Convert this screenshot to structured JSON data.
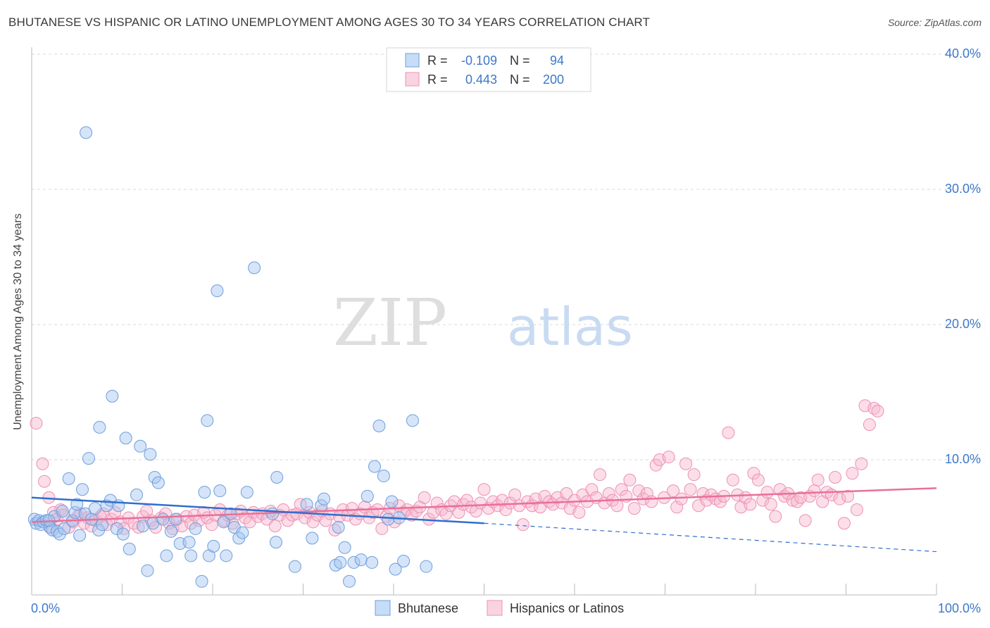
{
  "header": {
    "title": "BHUTANESE VS HISPANIC OR LATINO UNEMPLOYMENT AMONG AGES 30 TO 34 YEARS CORRELATION CHART",
    "source": "Source: ZipAtlas.com"
  },
  "watermark": {
    "zip": "ZIP",
    "atlas": "atlas"
  },
  "colors": {
    "blue": "#6f9fdb",
    "blue_fill": "rgba(162,196,240,0.45)",
    "blue_line": "#2f6fcf",
    "pink": "#ee91b0",
    "pink_fill": "rgba(247,182,206,0.45)",
    "pink_line": "#e8709a",
    "tick_label": "#3d78c9",
    "grid": "#d9d9d9"
  },
  "chart_data": {
    "type": "scatter",
    "xlabel": "",
    "ylabel": "Unemployment Among Ages 30 to 34 years",
    "xlim": [
      0,
      100
    ],
    "ylim": [
      0,
      40
    ],
    "x_tick_labels": [
      "0.0%",
      "100.0%"
    ],
    "y_ticks": [
      10,
      20,
      30,
      40
    ],
    "y_tick_labels": [
      "10.0%",
      "20.0%",
      "30.0%",
      "40.0%"
    ],
    "grid": true,
    "legend_position": "top-center",
    "stats": [
      {
        "r_label": "R =",
        "r_value": "-0.109",
        "n_label": "N =",
        "n_value": "94"
      },
      {
        "r_label": "R =",
        "r_value": "0.443",
        "n_label": "N =",
        "n_value": "200"
      }
    ],
    "series": [
      {
        "name": "Bhutanese",
        "trend": {
          "solid": [
            [
              0,
              7.2
            ],
            [
              50,
              5.3
            ]
          ],
          "dashed": [
            [
              50,
              5.3
            ],
            [
              100,
              3.2
            ]
          ]
        },
        "points": [
          [
            0.3,
            5.6
          ],
          [
            0.5,
            5.3
          ],
          [
            0.8,
            5.5
          ],
          [
            1.0,
            5.2
          ],
          [
            1.3,
            5.4
          ],
          [
            1.6,
            5.5
          ],
          [
            2.0,
            5.0
          ],
          [
            2.3,
            4.8
          ],
          [
            2.5,
            5.8
          ],
          [
            2.8,
            4.7
          ],
          [
            3.1,
            4.5
          ],
          [
            3.4,
            6.2
          ],
          [
            3.6,
            4.9
          ],
          [
            4.1,
            8.6
          ],
          [
            4.5,
            5.5
          ],
          [
            4.8,
            6.1
          ],
          [
            5.3,
            4.4
          ],
          [
            5.6,
            7.8
          ],
          [
            5.9,
            6.0
          ],
          [
            6.3,
            10.1
          ],
          [
            6.6,
            5.6
          ],
          [
            7.0,
            6.4
          ],
          [
            7.4,
            4.8
          ],
          [
            7.5,
            12.4
          ],
          [
            7.8,
            5.2
          ],
          [
            8.3,
            6.6
          ],
          [
            8.7,
            7.0
          ],
          [
            8.9,
            14.7
          ],
          [
            9.4,
            4.9
          ],
          [
            9.6,
            6.6
          ],
          [
            10.1,
            4.5
          ],
          [
            10.4,
            11.6
          ],
          [
            10.8,
            3.4
          ],
          [
            11.6,
            7.4
          ],
          [
            12.0,
            11.0
          ],
          [
            12.3,
            5.1
          ],
          [
            12.8,
            1.8
          ],
          [
            13.1,
            10.4
          ],
          [
            13.4,
            5.3
          ],
          [
            13.6,
            8.7
          ],
          [
            14.0,
            8.3
          ],
          [
            14.5,
            5.6
          ],
          [
            14.9,
            2.9
          ],
          [
            15.4,
            4.7
          ],
          [
            15.9,
            5.6
          ],
          [
            16.4,
            3.8
          ],
          [
            17.4,
            3.9
          ],
          [
            17.6,
            2.9
          ],
          [
            18.1,
            4.9
          ],
          [
            18.8,
            1.0
          ],
          [
            19.1,
            7.6
          ],
          [
            19.4,
            12.9
          ],
          [
            19.6,
            2.9
          ],
          [
            20.1,
            3.6
          ],
          [
            20.5,
            22.5
          ],
          [
            20.8,
            7.7
          ],
          [
            21.2,
            5.4
          ],
          [
            21.5,
            2.9
          ],
          [
            22.0,
            6.0
          ],
          [
            22.4,
            5.0
          ],
          [
            22.9,
            4.2
          ],
          [
            23.3,
            4.6
          ],
          [
            23.8,
            7.6
          ],
          [
            24.6,
            24.2
          ],
          [
            26.6,
            6.0
          ],
          [
            27.1,
            8.7
          ],
          [
            27.0,
            3.9
          ],
          [
            29.1,
            2.1
          ],
          [
            30.4,
            6.7
          ],
          [
            31.0,
            4.2
          ],
          [
            32.0,
            6.6
          ],
          [
            32.3,
            7.1
          ],
          [
            33.6,
            2.2
          ],
          [
            33.9,
            5.0
          ],
          [
            34.1,
            2.4
          ],
          [
            34.6,
            3.5
          ],
          [
            35.1,
            1.0
          ],
          [
            35.6,
            2.4
          ],
          [
            36.4,
            2.6
          ],
          [
            37.1,
            7.3
          ],
          [
            37.6,
            2.4
          ],
          [
            37.9,
            9.5
          ],
          [
            38.4,
            12.5
          ],
          [
            38.9,
            8.8
          ],
          [
            39.4,
            5.6
          ],
          [
            39.8,
            6.9
          ],
          [
            40.2,
            1.9
          ],
          [
            40.6,
            5.7
          ],
          [
            41.1,
            2.5
          ],
          [
            42.1,
            12.9
          ],
          [
            43.6,
            2.1
          ],
          [
            5.0,
            6.7
          ],
          [
            6.0,
            34.2
          ],
          [
            1.9,
            5.5
          ]
        ]
      },
      {
        "name": "Hispanics or Latinos",
        "trend": {
          "solid": [
            [
              0,
              5.4
            ],
            [
              100,
              7.9
            ]
          ]
        },
        "points": [
          [
            0.5,
            12.7
          ],
          [
            1.2,
            9.7
          ],
          [
            1.4,
            8.4
          ],
          [
            1.9,
            7.2
          ],
          [
            2.1,
            5.0
          ],
          [
            2.4,
            6.1
          ],
          [
            2.8,
            5.6
          ],
          [
            3.2,
            6.3
          ],
          [
            3.5,
            5.9
          ],
          [
            4.1,
            5.0
          ],
          [
            4.6,
            5.4
          ],
          [
            5.1,
            5.8
          ],
          [
            5.4,
            6.0
          ],
          [
            5.8,
            5.3
          ],
          [
            6.2,
            5.7
          ],
          [
            6.6,
            5.1
          ],
          [
            7.1,
            5.5
          ],
          [
            7.6,
            5.8
          ],
          [
            7.9,
            6.0
          ],
          [
            8.3,
            5.2
          ],
          [
            8.8,
            5.6
          ],
          [
            9.2,
            6.1
          ],
          [
            9.8,
            5.4
          ],
          [
            10.2,
            4.9
          ],
          [
            10.7,
            5.7
          ],
          [
            11.3,
            5.3
          ],
          [
            11.8,
            5.0
          ],
          [
            12.3,
            5.8
          ],
          [
            12.7,
            6.2
          ],
          [
            13.2,
            5.5
          ],
          [
            13.7,
            5.0
          ],
          [
            14.3,
            5.7
          ],
          [
            14.8,
            6.0
          ],
          [
            15.2,
            5.3
          ],
          [
            15.6,
            4.9
          ],
          [
            16.1,
            5.6
          ],
          [
            16.6,
            5.1
          ],
          [
            17.1,
            5.8
          ],
          [
            17.6,
            5.3
          ],
          [
            18.0,
            5.9
          ],
          [
            18.5,
            5.5
          ],
          [
            19.0,
            6.1
          ],
          [
            19.4,
            5.7
          ],
          [
            19.9,
            5.2
          ],
          [
            20.3,
            5.9
          ],
          [
            20.8,
            6.3
          ],
          [
            21.3,
            5.5
          ],
          [
            21.7,
            5.9
          ],
          [
            22.2,
            5.3
          ],
          [
            22.7,
            6.0
          ],
          [
            23.1,
            6.2
          ],
          [
            23.6,
            5.7
          ],
          [
            24.1,
            5.4
          ],
          [
            24.5,
            6.1
          ],
          [
            25.0,
            5.8
          ],
          [
            25.5,
            6.0
          ],
          [
            26.0,
            5.6
          ],
          [
            26.4,
            6.2
          ],
          [
            26.9,
            5.1
          ],
          [
            27.4,
            5.9
          ],
          [
            27.8,
            6.3
          ],
          [
            28.3,
            5.5
          ],
          [
            28.8,
            5.9
          ],
          [
            29.3,
            6.0
          ],
          [
            29.7,
            6.7
          ],
          [
            30.2,
            5.7
          ],
          [
            30.7,
            6.1
          ],
          [
            31.1,
            5.4
          ],
          [
            31.6,
            5.9
          ],
          [
            32.1,
            6.2
          ],
          [
            32.5,
            5.5
          ],
          [
            33.0,
            6.0
          ],
          [
            33.5,
            4.8
          ],
          [
            34.0,
            5.8
          ],
          [
            34.4,
            6.3
          ],
          [
            34.9,
            5.9
          ],
          [
            35.4,
            6.4
          ],
          [
            35.8,
            5.6
          ],
          [
            36.3,
            6.0
          ],
          [
            36.8,
            6.5
          ],
          [
            37.3,
            5.7
          ],
          [
            37.7,
            6.1
          ],
          [
            38.2,
            6.3
          ],
          [
            38.7,
            4.9
          ],
          [
            39.2,
            5.8
          ],
          [
            39.6,
            6.4
          ],
          [
            40.1,
            5.4
          ],
          [
            40.6,
            6.6
          ],
          [
            41.1,
            6.1
          ],
          [
            41.5,
            6.3
          ],
          [
            42.0,
            5.9
          ],
          [
            42.5,
            6.2
          ],
          [
            42.9,
            6.5
          ],
          [
            43.4,
            7.2
          ],
          [
            43.9,
            5.6
          ],
          [
            44.4,
            6.1
          ],
          [
            44.8,
            6.8
          ],
          [
            45.3,
            6.3
          ],
          [
            45.8,
            6.0
          ],
          [
            46.3,
            6.6
          ],
          [
            46.7,
            6.9
          ],
          [
            47.2,
            6.1
          ],
          [
            47.7,
            6.7
          ],
          [
            48.1,
            7.0
          ],
          [
            48.6,
            6.5
          ],
          [
            49.1,
            6.2
          ],
          [
            49.6,
            6.8
          ],
          [
            50.0,
            7.8
          ],
          [
            50.5,
            6.4
          ],
          [
            51.0,
            6.9
          ],
          [
            51.5,
            6.6
          ],
          [
            52.0,
            7.0
          ],
          [
            52.4,
            6.3
          ],
          [
            52.9,
            6.8
          ],
          [
            53.4,
            7.4
          ],
          [
            53.9,
            6.6
          ],
          [
            54.3,
            5.2
          ],
          [
            54.8,
            6.9
          ],
          [
            55.3,
            6.6
          ],
          [
            55.7,
            7.1
          ],
          [
            56.2,
            6.5
          ],
          [
            56.7,
            7.3
          ],
          [
            57.2,
            6.9
          ],
          [
            57.6,
            6.7
          ],
          [
            58.1,
            7.2
          ],
          [
            58.6,
            6.8
          ],
          [
            59.1,
            7.5
          ],
          [
            59.5,
            6.4
          ],
          [
            60.0,
            7.0
          ],
          [
            60.5,
            6.1
          ],
          [
            60.9,
            7.4
          ],
          [
            61.4,
            6.9
          ],
          [
            61.9,
            7.8
          ],
          [
            62.4,
            7.2
          ],
          [
            62.8,
            8.9
          ],
          [
            63.3,
            6.8
          ],
          [
            63.8,
            7.5
          ],
          [
            64.2,
            7.0
          ],
          [
            64.7,
            6.6
          ],
          [
            65.2,
            7.8
          ],
          [
            65.7,
            7.3
          ],
          [
            66.1,
            8.5
          ],
          [
            66.6,
            6.4
          ],
          [
            67.1,
            7.7
          ],
          [
            67.6,
            7.1
          ],
          [
            68.0,
            7.5
          ],
          [
            68.5,
            6.9
          ],
          [
            69.0,
            9.6
          ],
          [
            69.4,
            10.0
          ],
          [
            69.9,
            7.2
          ],
          [
            70.4,
            10.2
          ],
          [
            70.9,
            7.7
          ],
          [
            71.3,
            6.5
          ],
          [
            71.8,
            7.1
          ],
          [
            72.3,
            9.7
          ],
          [
            72.8,
            7.8
          ],
          [
            73.2,
            8.9
          ],
          [
            73.7,
            6.6
          ],
          [
            74.2,
            7.5
          ],
          [
            74.6,
            7.0
          ],
          [
            75.1,
            7.4
          ],
          [
            75.6,
            7.1
          ],
          [
            76.1,
            6.9
          ],
          [
            76.5,
            7.3
          ],
          [
            77.0,
            12.0
          ],
          [
            77.5,
            8.5
          ],
          [
            78.0,
            7.4
          ],
          [
            78.4,
            6.5
          ],
          [
            78.9,
            7.2
          ],
          [
            79.4,
            6.7
          ],
          [
            79.8,
            9.0
          ],
          [
            80.3,
            8.5
          ],
          [
            80.8,
            7.0
          ],
          [
            81.3,
            7.6
          ],
          [
            81.7,
            6.7
          ],
          [
            82.2,
            5.8
          ],
          [
            82.7,
            7.8
          ],
          [
            83.2,
            7.3
          ],
          [
            83.6,
            7.5
          ],
          [
            84.1,
            7.0
          ],
          [
            84.6,
            6.9
          ],
          [
            85.0,
            7.2
          ],
          [
            85.5,
            5.5
          ],
          [
            86.0,
            7.3
          ],
          [
            86.5,
            7.7
          ],
          [
            86.9,
            8.5
          ],
          [
            87.4,
            6.9
          ],
          [
            87.9,
            7.6
          ],
          [
            88.4,
            7.4
          ],
          [
            88.8,
            8.7
          ],
          [
            89.3,
            7.1
          ],
          [
            89.8,
            5.3
          ],
          [
            90.2,
            7.3
          ],
          [
            90.7,
            9.0
          ],
          [
            91.2,
            6.3
          ],
          [
            91.7,
            9.7
          ],
          [
            92.1,
            14.0
          ],
          [
            92.6,
            12.6
          ],
          [
            93.1,
            13.8
          ],
          [
            93.5,
            13.6
          ]
        ]
      }
    ]
  }
}
